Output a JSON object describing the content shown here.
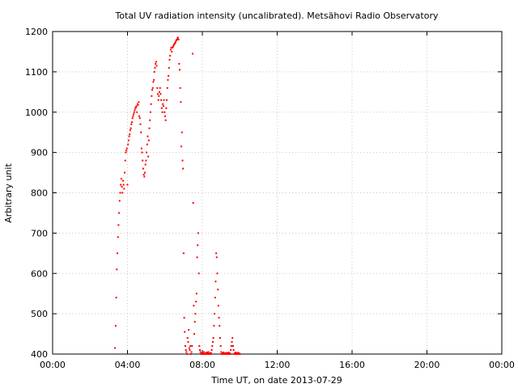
{
  "chart_data": {
    "type": "scatter",
    "title": "Total UV radiation intensity (uncalibrated). Metsähovi Radio Observatory",
    "xlabel": "Time UT, on date 2013-07-29",
    "ylabel": "Arbitrary unit",
    "x_unit": "hours UT",
    "xlim": [
      0,
      24
    ],
    "ylim": [
      400,
      1200
    ],
    "grid": true,
    "marker_color": "#ff0000",
    "x_ticks": [
      {
        "value": 0,
        "label": "00:00"
      },
      {
        "value": 4,
        "label": "04:00"
      },
      {
        "value": 8,
        "label": "08:00"
      },
      {
        "value": 12,
        "label": "12:00"
      },
      {
        "value": 16,
        "label": "16:00"
      },
      {
        "value": 20,
        "label": "20:00"
      },
      {
        "value": 24,
        "label": "00:00"
      }
    ],
    "y_ticks": [
      {
        "value": 400,
        "label": "400"
      },
      {
        "value": 500,
        "label": "500"
      },
      {
        "value": 600,
        "label": "600"
      },
      {
        "value": 700,
        "label": "700"
      },
      {
        "value": 800,
        "label": "800"
      },
      {
        "value": 900,
        "label": "900"
      },
      {
        "value": 1000,
        "label": "1000"
      },
      {
        "value": 1100,
        "label": "1100"
      },
      {
        "value": 1200,
        "label": "1200"
      }
    ],
    "series": [
      {
        "points": [
          [
            3.33,
            415
          ],
          [
            3.37,
            470
          ],
          [
            3.4,
            540
          ],
          [
            3.43,
            610
          ],
          [
            3.46,
            650
          ],
          [
            3.49,
            690
          ],
          [
            3.52,
            720
          ],
          [
            3.55,
            750
          ],
          [
            3.58,
            780
          ],
          [
            3.61,
            800
          ],
          [
            3.64,
            820
          ],
          [
            3.67,
            835
          ],
          [
            3.7,
            815
          ],
          [
            3.73,
            800
          ],
          [
            3.76,
            830
          ],
          [
            3.79,
            820
          ],
          [
            3.82,
            810
          ],
          [
            3.85,
            850
          ],
          [
            3.88,
            880
          ],
          [
            3.91,
            900
          ],
          [
            3.94,
            905
          ],
          [
            3.97,
            910
          ],
          [
            4.0,
            820
          ],
          [
            4.03,
            920
          ],
          [
            4.06,
            930
          ],
          [
            4.09,
            940
          ],
          [
            4.12,
            945
          ],
          [
            4.15,
            955
          ],
          [
            4.18,
            960
          ],
          [
            4.21,
            970
          ],
          [
            4.24,
            975
          ],
          [
            4.27,
            985
          ],
          [
            4.3,
            990
          ],
          [
            4.33,
            995
          ],
          [
            4.36,
            1000
          ],
          [
            4.39,
            1005
          ],
          [
            4.42,
            1010
          ],
          [
            4.45,
            1012
          ],
          [
            4.48,
            1015
          ],
          [
            4.51,
            1000
          ],
          [
            4.54,
            1020
          ],
          [
            4.57,
            1018
          ],
          [
            4.6,
            1025
          ],
          [
            4.63,
            990
          ],
          [
            4.66,
            985
          ],
          [
            4.69,
            970
          ],
          [
            4.72,
            950
          ],
          [
            4.75,
            910
          ],
          [
            4.78,
            900
          ],
          [
            4.81,
            880
          ],
          [
            4.84,
            860
          ],
          [
            4.87,
            845
          ],
          [
            4.9,
            840
          ],
          [
            4.93,
            850
          ],
          [
            4.96,
            870
          ],
          [
            4.99,
            880
          ],
          [
            5.02,
            900
          ],
          [
            5.05,
            920
          ],
          [
            5.08,
            940
          ],
          [
            5.11,
            890
          ],
          [
            5.14,
            930
          ],
          [
            5.17,
            960
          ],
          [
            5.2,
            980
          ],
          [
            5.23,
            1000
          ],
          [
            5.26,
            1020
          ],
          [
            5.29,
            1040
          ],
          [
            5.32,
            1055
          ],
          [
            5.35,
            1060
          ],
          [
            5.38,
            1075
          ],
          [
            5.41,
            1080
          ],
          [
            5.44,
            1100
          ],
          [
            5.47,
            1110
          ],
          [
            5.5,
            1120
          ],
          [
            5.53,
            1125
          ],
          [
            5.56,
            1115
          ],
          [
            5.59,
            1060
          ],
          [
            5.62,
            1045
          ],
          [
            5.65,
            1030
          ],
          [
            5.68,
            1040
          ],
          [
            5.71,
            1050
          ],
          [
            5.74,
            1060
          ],
          [
            5.77,
            1045
          ],
          [
            5.8,
            1030
          ],
          [
            5.83,
            1010
          ],
          [
            5.86,
            1000
          ],
          [
            5.89,
            1020
          ],
          [
            5.92,
            1015
          ],
          [
            5.95,
            1030
          ],
          [
            5.98,
            1000
          ],
          [
            6.01,
            990
          ],
          [
            6.04,
            980
          ],
          [
            6.07,
            1010
          ],
          [
            6.1,
            1030
          ],
          [
            6.13,
            1060
          ],
          [
            6.16,
            1080
          ],
          [
            6.19,
            1090
          ],
          [
            6.22,
            1110
          ],
          [
            6.25,
            1130
          ],
          [
            6.28,
            1140
          ],
          [
            6.31,
            1155
          ],
          [
            6.34,
            1160
          ],
          [
            6.37,
            1150
          ],
          [
            6.4,
            1160
          ],
          [
            6.43,
            1162
          ],
          [
            6.46,
            1165
          ],
          [
            6.49,
            1168
          ],
          [
            6.52,
            1170
          ],
          [
            6.55,
            1172
          ],
          [
            6.58,
            1175
          ],
          [
            6.61,
            1178
          ],
          [
            6.64,
            1180
          ],
          [
            6.67,
            1183
          ],
          [
            6.7,
            1185
          ],
          [
            6.73,
            1180
          ],
          [
            6.76,
            1120
          ],
          [
            6.79,
            1105
          ],
          [
            6.82,
            1060
          ],
          [
            6.85,
            1025
          ],
          [
            6.88,
            915
          ],
          [
            6.91,
            950
          ],
          [
            6.94,
            880
          ],
          [
            6.97,
            860
          ],
          [
            7.0,
            650
          ],
          [
            7.03,
            490
          ],
          [
            7.06,
            455
          ],
          [
            7.09,
            420
          ],
          [
            7.12,
            410
          ],
          [
            7.15,
            405
          ],
          [
            7.18,
            400
          ],
          [
            7.21,
            440
          ],
          [
            7.24,
            430
          ],
          [
            7.27,
            460
          ],
          [
            7.3,
            415
          ],
          [
            7.33,
            410
          ],
          [
            7.36,
            420
          ],
          [
            7.39,
            400
          ],
          [
            7.42,
            405
          ],
          [
            7.45,
            420
          ],
          [
            7.48,
            1145
          ],
          [
            7.51,
            775
          ],
          [
            7.54,
            520
          ],
          [
            7.57,
            450
          ],
          [
            7.6,
            480
          ],
          [
            7.63,
            500
          ],
          [
            7.66,
            530
          ],
          [
            7.69,
            550
          ],
          [
            7.72,
            640
          ],
          [
            7.75,
            670
          ],
          [
            7.78,
            700
          ],
          [
            7.81,
            600
          ],
          [
            7.84,
            420
          ],
          [
            7.87,
            410
          ],
          [
            7.9,
            405
          ],
          [
            7.93,
            400
          ],
          [
            7.96,
            402
          ],
          [
            7.99,
            400
          ],
          [
            8.02,
            400
          ],
          [
            8.05,
            402
          ],
          [
            8.08,
            405
          ],
          [
            8.11,
            400
          ],
          [
            8.14,
            400
          ],
          [
            8.17,
            402
          ],
          [
            8.2,
            400
          ],
          [
            8.23,
            404
          ],
          [
            8.26,
            400
          ],
          [
            8.29,
            402
          ],
          [
            8.32,
            405
          ],
          [
            8.35,
            400
          ],
          [
            8.38,
            400
          ],
          [
            8.41,
            403
          ],
          [
            8.44,
            400
          ],
          [
            8.47,
            402
          ],
          [
            8.5,
            410
          ],
          [
            8.53,
            420
          ],
          [
            8.56,
            430
          ],
          [
            8.59,
            440
          ],
          [
            8.62,
            470
          ],
          [
            8.65,
            500
          ],
          [
            8.68,
            540
          ],
          [
            8.71,
            580
          ],
          [
            8.74,
            650
          ],
          [
            8.77,
            640
          ],
          [
            8.8,
            600
          ],
          [
            8.83,
            560
          ],
          [
            8.86,
            520
          ],
          [
            8.89,
            490
          ],
          [
            8.92,
            470
          ],
          [
            8.95,
            440
          ],
          [
            8.98,
            420
          ],
          [
            9.01,
            405
          ],
          [
            9.04,
            400
          ],
          [
            9.07,
            402
          ],
          [
            9.1,
            400
          ],
          [
            9.13,
            404
          ],
          [
            9.16,
            400
          ],
          [
            9.19,
            402
          ],
          [
            9.22,
            400
          ],
          [
            9.25,
            400
          ],
          [
            9.28,
            403
          ],
          [
            9.31,
            400
          ],
          [
            9.34,
            402
          ],
          [
            9.37,
            400
          ],
          [
            9.4,
            404
          ],
          [
            9.43,
            400
          ],
          [
            9.46,
            402
          ],
          [
            9.49,
            400
          ],
          [
            9.52,
            410
          ],
          [
            9.55,
            420
          ],
          [
            9.58,
            430
          ],
          [
            9.61,
            440
          ],
          [
            9.64,
            420
          ],
          [
            9.67,
            410
          ],
          [
            9.7,
            400
          ],
          [
            9.73,
            402
          ],
          [
            9.76,
            400
          ],
          [
            9.79,
            404
          ],
          [
            9.82,
            400
          ],
          [
            9.85,
            402
          ],
          [
            9.88,
            400
          ],
          [
            9.91,
            403
          ],
          [
            9.94,
            400
          ],
          [
            9.97,
            402
          ],
          [
            10.0,
            400
          ]
        ]
      }
    ]
  }
}
